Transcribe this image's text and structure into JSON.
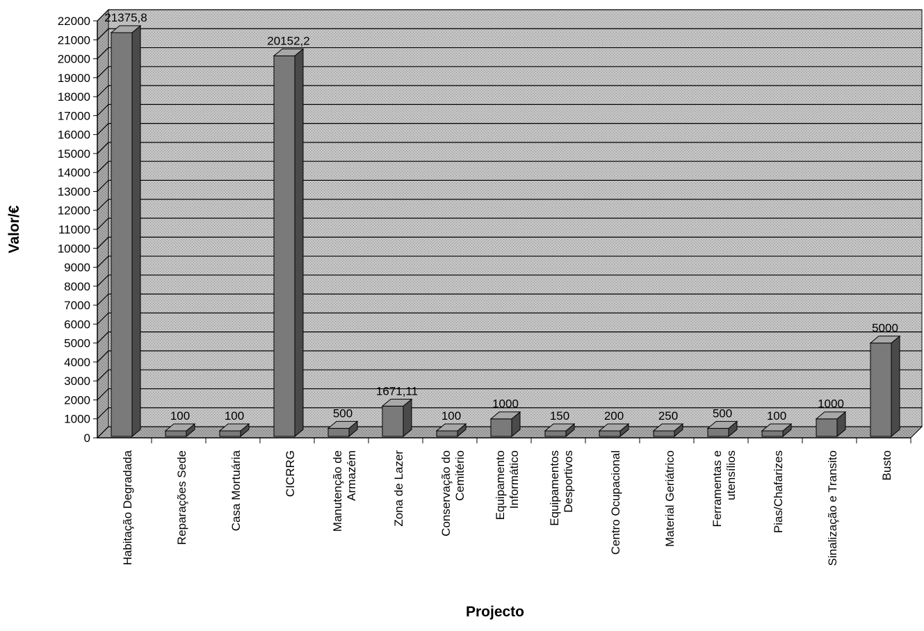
{
  "chart_data": {
    "type": "bar",
    "xlabel": "Projecto",
    "ylabel": "Valor/€",
    "ylim": [
      0,
      22000
    ],
    "ytick_step": 1000,
    "grid": true,
    "three_d": true,
    "categories": [
      "Habitação Degradada",
      "Reparações Sede",
      "Casa Mortuária",
      "CICRRG",
      "Manutenção de Armazém",
      "Zona de Lazer",
      "Conservação do Cemitério",
      "Equipamento Informático",
      "Equipamentos Desportivos",
      "Centro Ocupacional",
      "Material Geriátrico",
      "Ferramentas e utensílios",
      "Pias/Chafarizes",
      "Sinalização e Transito",
      "Busto"
    ],
    "category_lines": [
      [
        "Habitação Degradada"
      ],
      [
        "Reparações Sede"
      ],
      [
        "Casa Mortuária"
      ],
      [
        "CICRRG"
      ],
      [
        "Manutenção de",
        "Armazém"
      ],
      [
        "Zona de Lazer"
      ],
      [
        "Conservação do",
        "Cemitério"
      ],
      [
        "Equipamento",
        "Informático"
      ],
      [
        "Equipamentos",
        "Desportivos"
      ],
      [
        "Centro Ocupacional"
      ],
      [
        "Material Geriátrico"
      ],
      [
        "Ferramentas e",
        "utensílios"
      ],
      [
        "Pias/Chafarizes"
      ],
      [
        "Sinalização e Transito"
      ],
      [
        "Busto"
      ]
    ],
    "values": [
      21375.8,
      100,
      100,
      20152.2,
      500,
      1671.11,
      100,
      1000,
      150,
      200,
      250,
      500,
      100,
      1000,
      5000
    ],
    "data_labels": [
      "21375,8",
      "100",
      "100",
      "20152,2",
      "500",
      "1671,11",
      "100",
      "1000",
      "150",
      "200",
      "250",
      "500",
      "100",
      "1000",
      "5000"
    ],
    "colors": {
      "bar_front": "#7a7a7a",
      "bar_side": "#4a4a4a",
      "bar_top": "#a8a8a8",
      "wall": "#bdbdbd",
      "floor": "#9e9e9e",
      "grid": "#000000"
    }
  }
}
